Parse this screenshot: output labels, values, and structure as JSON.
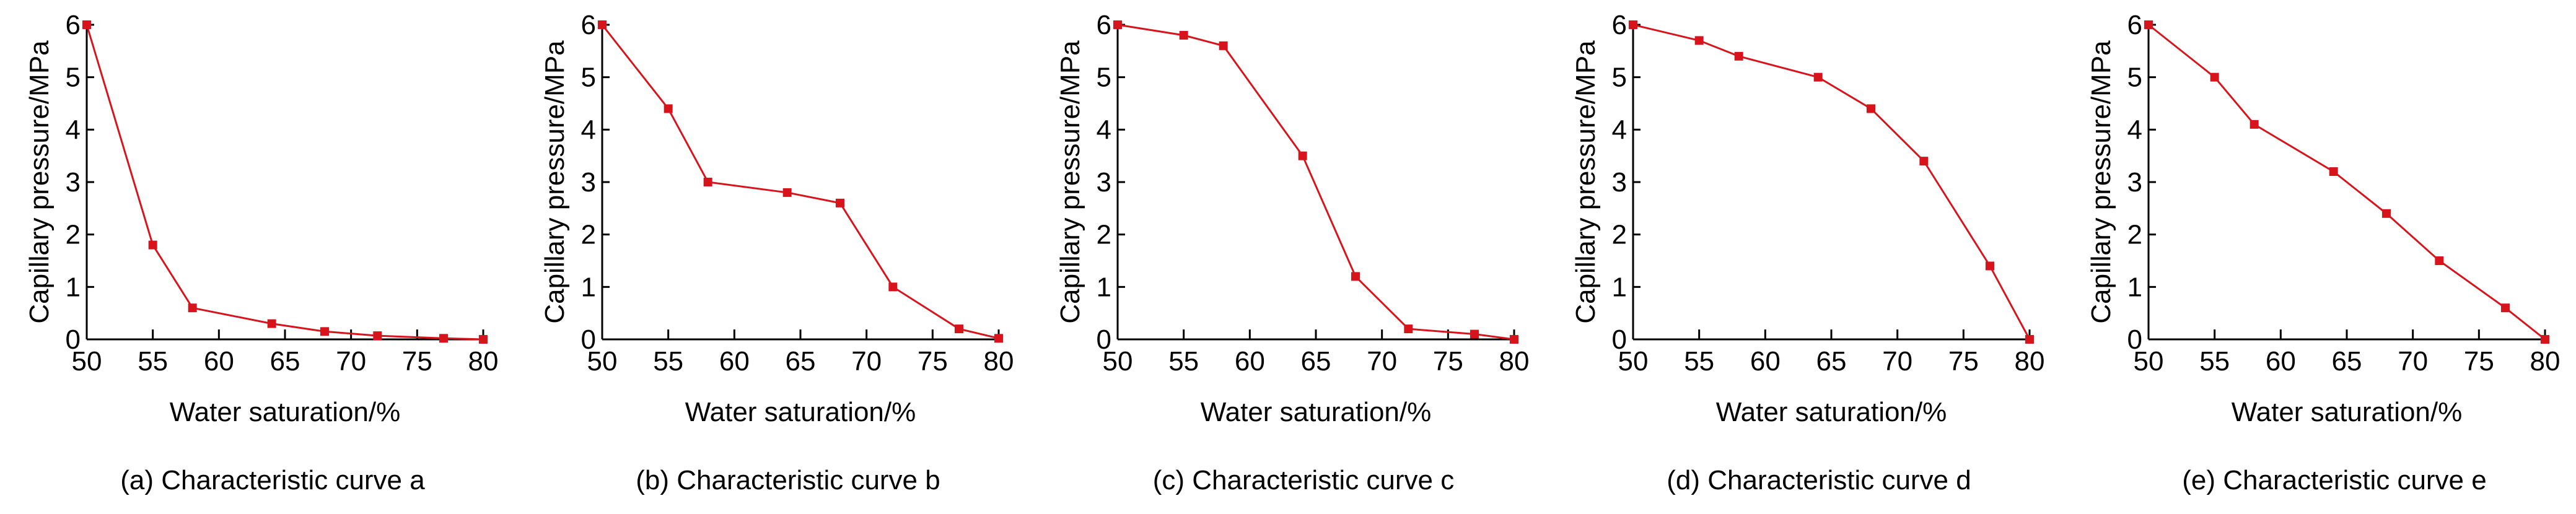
{
  "chart_data": [
    {
      "type": "line",
      "panel": "a",
      "caption": "(a) Characteristic curve a",
      "xlabel": "Water saturation/%",
      "ylabel": "Capillary pressure/MPa",
      "xlim": [
        50,
        80
      ],
      "ylim": [
        0,
        6
      ],
      "xticks": [
        "50",
        "55",
        "60",
        "65",
        "70",
        "75",
        "80"
      ],
      "yticks": [
        "0",
        "1",
        "2",
        "3",
        "4",
        "5",
        "6"
      ],
      "color": "#d7141c",
      "x": [
        50,
        55,
        58,
        64,
        68,
        72,
        77,
        80
      ],
      "y": [
        6.0,
        1.8,
        0.6,
        0.3,
        0.15,
        0.07,
        0.02,
        0.0
      ]
    },
    {
      "type": "line",
      "panel": "b",
      "caption": "(b) Characteristic curve b",
      "xlabel": "Water saturation/%",
      "ylabel": "Capillary pressure/MPa",
      "xlim": [
        50,
        80
      ],
      "ylim": [
        0,
        6
      ],
      "xticks": [
        "50",
        "55",
        "60",
        "65",
        "70",
        "75",
        "80"
      ],
      "yticks": [
        "0",
        "1",
        "2",
        "3",
        "4",
        "5",
        "6"
      ],
      "color": "#d7141c",
      "x": [
        50,
        55,
        58,
        64,
        68,
        72,
        77,
        80
      ],
      "y": [
        6.0,
        4.4,
        3.0,
        2.8,
        2.6,
        1.0,
        0.2,
        0.02
      ]
    },
    {
      "type": "line",
      "panel": "c",
      "caption": "(c) Characteristic curve c",
      "xlabel": "Water saturation/%",
      "ylabel": "Capillary pressure/MPa",
      "xlim": [
        50,
        80
      ],
      "ylim": [
        0,
        6
      ],
      "xticks": [
        "50",
        "55",
        "60",
        "65",
        "70",
        "75",
        "80"
      ],
      "yticks": [
        "0",
        "1",
        "2",
        "3",
        "4",
        "5",
        "6"
      ],
      "color": "#d7141c",
      "x": [
        50,
        55,
        58,
        64,
        68,
        72,
        77,
        80
      ],
      "y": [
        6.0,
        5.8,
        5.6,
        3.5,
        1.2,
        0.2,
        0.1,
        0.0
      ]
    },
    {
      "type": "line",
      "panel": "d",
      "caption": "(d) Characteristic curve d",
      "xlabel": "Water saturation/%",
      "ylabel": "Capillary pressure/MPa",
      "xlim": [
        50,
        80
      ],
      "ylim": [
        0,
        6
      ],
      "xticks": [
        "50",
        "55",
        "60",
        "65",
        "70",
        "75",
        "80"
      ],
      "yticks": [
        "0",
        "1",
        "2",
        "3",
        "4",
        "5",
        "6"
      ],
      "color": "#d7141c",
      "x": [
        50,
        55,
        58,
        64,
        68,
        72,
        77,
        80
      ],
      "y": [
        6.0,
        5.7,
        5.4,
        5.0,
        4.4,
        3.4,
        1.4,
        0.0
      ]
    },
    {
      "type": "line",
      "panel": "e",
      "caption": "(e) Characteristic curve e",
      "xlabel": "Water saturation/%",
      "ylabel": "Capillary pressure/MPa",
      "xlim": [
        50,
        80
      ],
      "ylim": [
        0,
        6
      ],
      "xticks": [
        "50",
        "55",
        "60",
        "65",
        "70",
        "75",
        "80"
      ],
      "yticks": [
        "0",
        "1",
        "2",
        "3",
        "4",
        "5",
        "6"
      ],
      "color": "#d7141c",
      "x": [
        50,
        55,
        58,
        64,
        68,
        72,
        77,
        80
      ],
      "y": [
        6.0,
        5.0,
        4.1,
        3.2,
        2.4,
        1.5,
        0.6,
        0.0
      ]
    }
  ]
}
